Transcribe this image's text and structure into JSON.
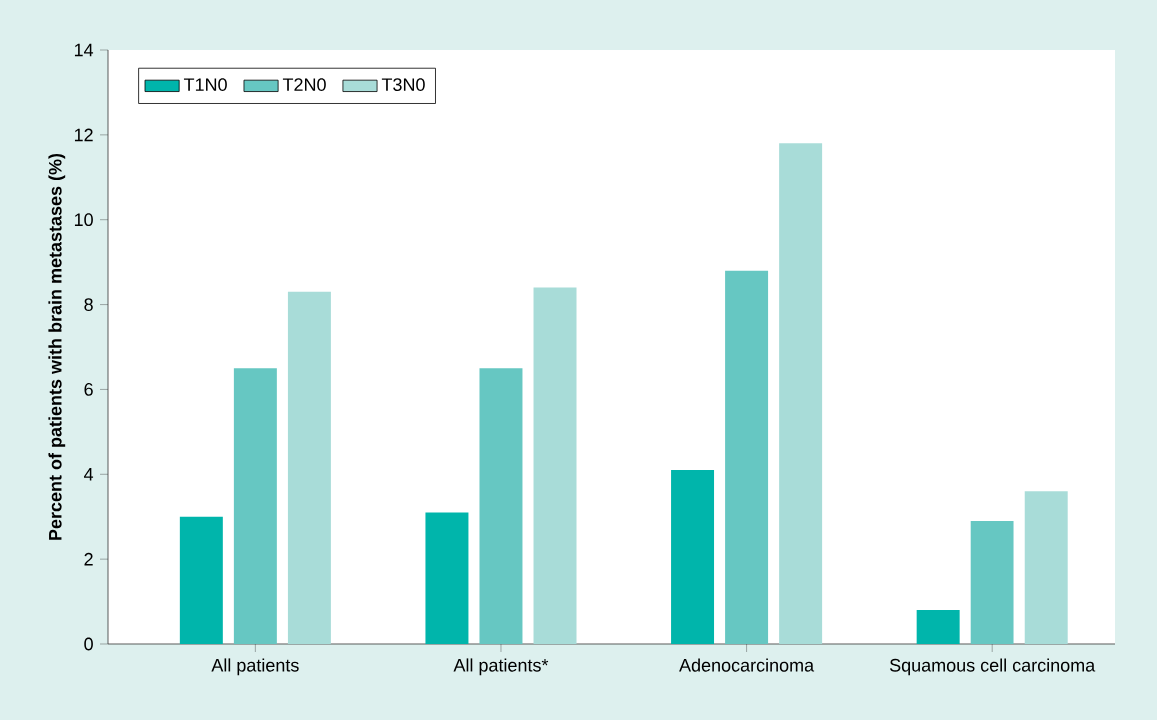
{
  "chart_data": {
    "type": "bar",
    "ylabel": "Percent of patients with brain metastases (%)",
    "categories": [
      "All patients",
      "All patients*",
      "Adenocarcinoma",
      "Squamous cell carcinoma"
    ],
    "series": [
      {
        "name": "T1N0",
        "color": "#00b5ab",
        "values": [
          3.0,
          3.1,
          4.1,
          0.8
        ]
      },
      {
        "name": "T2N0",
        "color": "#66c7c2",
        "values": [
          6.5,
          6.5,
          8.8,
          2.9
        ]
      },
      {
        "name": "T3N0",
        "color": "#a8dcd8",
        "values": [
          8.3,
          8.4,
          11.8,
          3.6
        ]
      }
    ],
    "ylim": [
      0,
      14
    ],
    "yticks": [
      0,
      2,
      4,
      6,
      8,
      10,
      12,
      14
    ],
    "legend": "top left",
    "grid": false
  }
}
